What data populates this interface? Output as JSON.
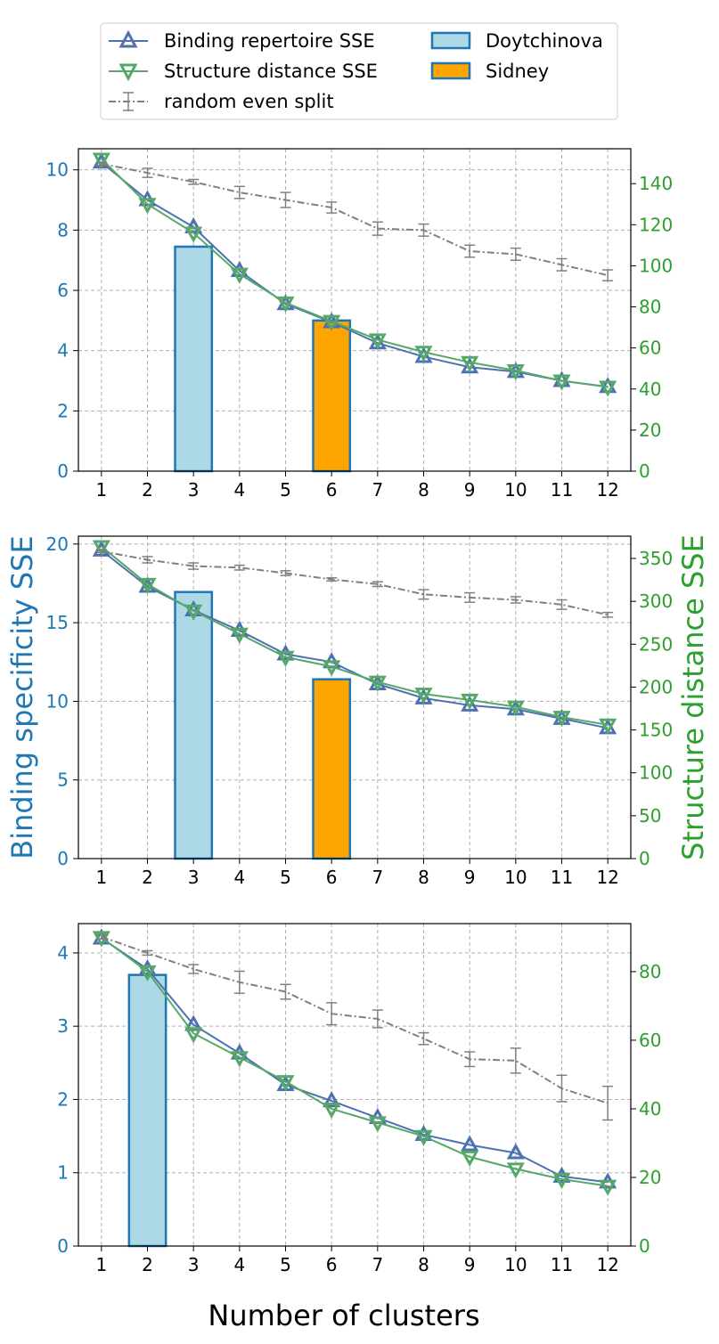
{
  "colors": {
    "binding": "#4c72b0",
    "structure": "#55a868",
    "random": "#808080",
    "left_axis": "#1f77b4",
    "right_axis": "#2ca02c",
    "bar_blue_fill": "#add8e6",
    "bar_orange_fill": "#ffa500",
    "bar_edge": "#1f77b4",
    "grid": "#b0b0b0"
  },
  "legend": {
    "binding": "Binding repertoire SSE",
    "structure": "Structure distance SSE",
    "random": "random even split",
    "doytchinova": "Doytchinova",
    "sidney": "Sidney"
  },
  "figure": {
    "xlabel": "Number of clusters",
    "ylabel_left": "Binding specificity SSE",
    "ylabel_right": "Structure distance SSE"
  },
  "chart_data": [
    {
      "type": "line",
      "x": [
        1,
        2,
        3,
        4,
        5,
        6,
        7,
        8,
        9,
        10,
        11,
        12
      ],
      "xlim": [
        0.5,
        12.5
      ],
      "ylim_left": [
        0,
        10.7
      ],
      "ylim_right": [
        0,
        157
      ],
      "left_ticks": [
        0,
        2,
        4,
        6,
        8,
        10
      ],
      "right_ticks": [
        0,
        20,
        40,
        60,
        80,
        100,
        120,
        140
      ],
      "grid": true,
      "series": [
        {
          "name": "Binding repertoire SSE",
          "axis": "left",
          "values": [
            10.25,
            9.0,
            8.1,
            6.65,
            5.55,
            4.95,
            4.25,
            3.8,
            3.45,
            3.3,
            3.0,
            2.8
          ]
        },
        {
          "name": "Structure distance SSE",
          "axis": "right",
          "values": [
            152,
            130,
            116,
            96,
            82,
            73,
            64,
            58,
            53,
            49,
            44,
            41
          ]
        },
        {
          "name": "random even split",
          "axis": "left",
          "values": [
            10.2,
            9.9,
            9.6,
            9.25,
            9.0,
            8.75,
            8.05,
            8.0,
            7.3,
            7.2,
            6.85,
            6.5
          ],
          "error": [
            0.05,
            0.15,
            0.08,
            0.2,
            0.25,
            0.18,
            0.22,
            0.2,
            0.2,
            0.2,
            0.2,
            0.18
          ]
        }
      ],
      "bars": [
        {
          "name": "Doytchinova",
          "x": 3,
          "value": 7.45
        },
        {
          "name": "Sidney",
          "x": 6,
          "value": 5.0
        }
      ]
    },
    {
      "type": "line",
      "x": [
        1,
        2,
        3,
        4,
        5,
        6,
        7,
        8,
        9,
        10,
        11,
        12
      ],
      "xlim": [
        0.5,
        12.5
      ],
      "ylim_left": [
        0,
        20.5
      ],
      "ylim_right": [
        0,
        376
      ],
      "left_ticks": [
        0,
        5,
        10,
        15,
        20
      ],
      "right_ticks": [
        0,
        50,
        100,
        150,
        200,
        250,
        300,
        350
      ],
      "grid": true,
      "series": [
        {
          "name": "Binding repertoire SSE",
          "axis": "left",
          "values": [
            19.6,
            17.3,
            15.8,
            14.5,
            13.0,
            12.5,
            11.1,
            10.2,
            9.75,
            9.5,
            8.9,
            8.3
          ]
        },
        {
          "name": "Structure distance SSE",
          "axis": "right",
          "values": [
            364,
            320,
            289,
            262,
            235,
            224,
            206,
            192,
            185,
            177,
            165,
            156
          ]
        },
        {
          "name": "random even split",
          "axis": "left",
          "values": [
            19.55,
            19.0,
            18.6,
            18.5,
            18.15,
            17.75,
            17.45,
            16.8,
            16.6,
            16.45,
            16.15,
            15.5
          ],
          "error": [
            0.1,
            0.2,
            0.2,
            0.15,
            0.15,
            0.1,
            0.15,
            0.3,
            0.3,
            0.2,
            0.3,
            0.15
          ]
        }
      ],
      "bars": [
        {
          "name": "Doytchinova",
          "x": 3,
          "value": 16.95
        },
        {
          "name": "Sidney",
          "x": 6,
          "value": 11.4
        }
      ]
    },
    {
      "type": "line",
      "x": [
        1,
        2,
        3,
        4,
        5,
        6,
        7,
        8,
        9,
        10,
        11,
        12
      ],
      "xlim": [
        0.5,
        12.5
      ],
      "ylim_left": [
        0,
        4.4
      ],
      "ylim_right": [
        0,
        94
      ],
      "left_ticks": [
        0,
        1,
        2,
        3,
        4
      ],
      "right_ticks": [
        0,
        20,
        40,
        60,
        80
      ],
      "grid": true,
      "series": [
        {
          "name": "Binding repertoire SSE",
          "axis": "left",
          "values": [
            4.2,
            3.78,
            3.02,
            2.63,
            2.2,
            1.98,
            1.75,
            1.52,
            1.38,
            1.27,
            0.95,
            0.87
          ]
        },
        {
          "name": "Structure distance SSE",
          "axis": "right",
          "values": [
            90,
            80,
            62,
            55,
            48,
            40,
            36,
            32,
            26,
            22.5,
            19.5,
            17.5
          ]
        },
        {
          "name": "random even split",
          "axis": "left",
          "values": [
            4.22,
            4.0,
            3.78,
            3.6,
            3.47,
            3.17,
            3.1,
            2.83,
            2.55,
            2.53,
            2.15,
            1.95
          ],
          "error": [
            0.03,
            0.03,
            0.06,
            0.15,
            0.1,
            0.15,
            0.12,
            0.08,
            0.1,
            0.17,
            0.18,
            0.23
          ]
        }
      ],
      "bars": [
        {
          "name": "Doytchinova",
          "x": 2,
          "value": 3.7
        }
      ]
    }
  ]
}
